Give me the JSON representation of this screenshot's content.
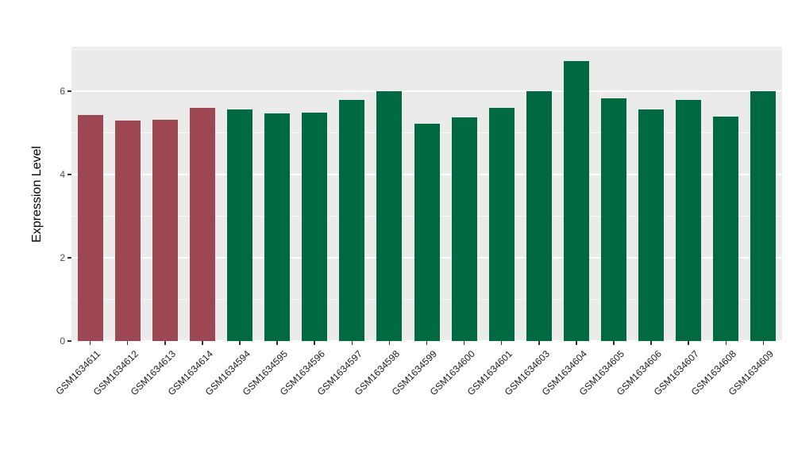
{
  "chart_data": {
    "type": "bar",
    "title": "",
    "xlabel": "",
    "ylabel": "Expression Level",
    "ylim": [
      0,
      7.07
    ],
    "yticks": [
      0,
      2,
      4,
      6
    ],
    "minor_ticks": [
      1,
      3,
      5,
      7
    ],
    "grid": true,
    "legend": false,
    "panel_background": "#EBEBEB",
    "group_colors": {
      "highlight": "#9D4752",
      "default": "#01693F"
    },
    "categories": [
      "GSM1634611",
      "GSM1634612",
      "GSM1634613",
      "GSM1634614",
      "GSM1634594",
      "GSM1634595",
      "GSM1634596",
      "GSM1634597",
      "GSM1634598",
      "GSM1634599",
      "GSM1634600",
      "GSM1634601",
      "GSM1634603",
      "GSM1634604",
      "GSM1634605",
      "GSM1634606",
      "GSM1634607",
      "GSM1634608",
      "GSM1634609"
    ],
    "values": [
      5.43,
      5.3,
      5.31,
      5.6,
      5.57,
      5.46,
      5.48,
      5.8,
      6.0,
      5.23,
      5.38,
      5.61,
      6.0,
      6.73,
      5.84,
      5.57,
      5.8,
      5.39,
      6.0
    ],
    "colors": [
      "#9D4752",
      "#9D4752",
      "#9D4752",
      "#9D4752",
      "#01693F",
      "#01693F",
      "#01693F",
      "#01693F",
      "#01693F",
      "#01693F",
      "#01693F",
      "#01693F",
      "#01693F",
      "#01693F",
      "#01693F",
      "#01693F",
      "#01693F",
      "#01693F",
      "#01693F"
    ]
  }
}
